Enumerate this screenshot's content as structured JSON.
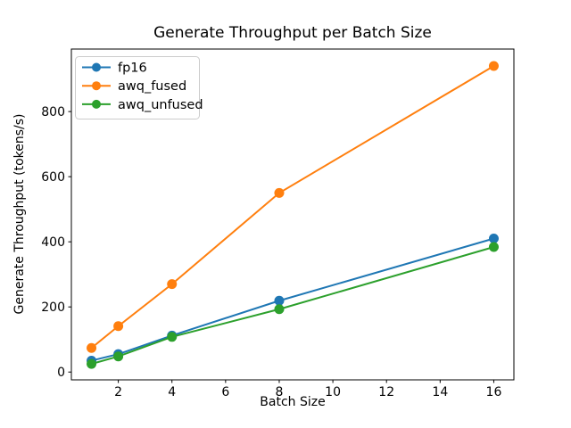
{
  "chart_data": {
    "type": "line",
    "title": "Generate Throughput per Batch Size",
    "xlabel": "Batch Size",
    "ylabel": "Generate Throughput (tokens/s)",
    "x": [
      1,
      2,
      4,
      8,
      16
    ],
    "series": [
      {
        "name": "fp16",
        "color": "#1f77b4",
        "values": [
          35,
          55,
          112,
          219,
          410
        ]
      },
      {
        "name": "awq_fused",
        "color": "#ff7f0e",
        "values": [
          74,
          141,
          270,
          550,
          940
        ]
      },
      {
        "name": "awq_unfused",
        "color": "#2ca02c",
        "values": [
          25,
          48,
          108,
          193,
          384
        ]
      }
    ],
    "xticks": [
      2,
      4,
      6,
      8,
      10,
      12,
      14,
      16
    ],
    "yticks": [
      0,
      200,
      400,
      600,
      800
    ],
    "xlim": [
      0.25,
      16.75
    ],
    "ylim": [
      -24,
      992
    ],
    "legend_position": "upper left",
    "grid": false,
    "marker": "circle",
    "line_width": 2,
    "background_color": "#ffffff",
    "axis_color": "#000000",
    "legend_border_color": "#cccccc"
  }
}
